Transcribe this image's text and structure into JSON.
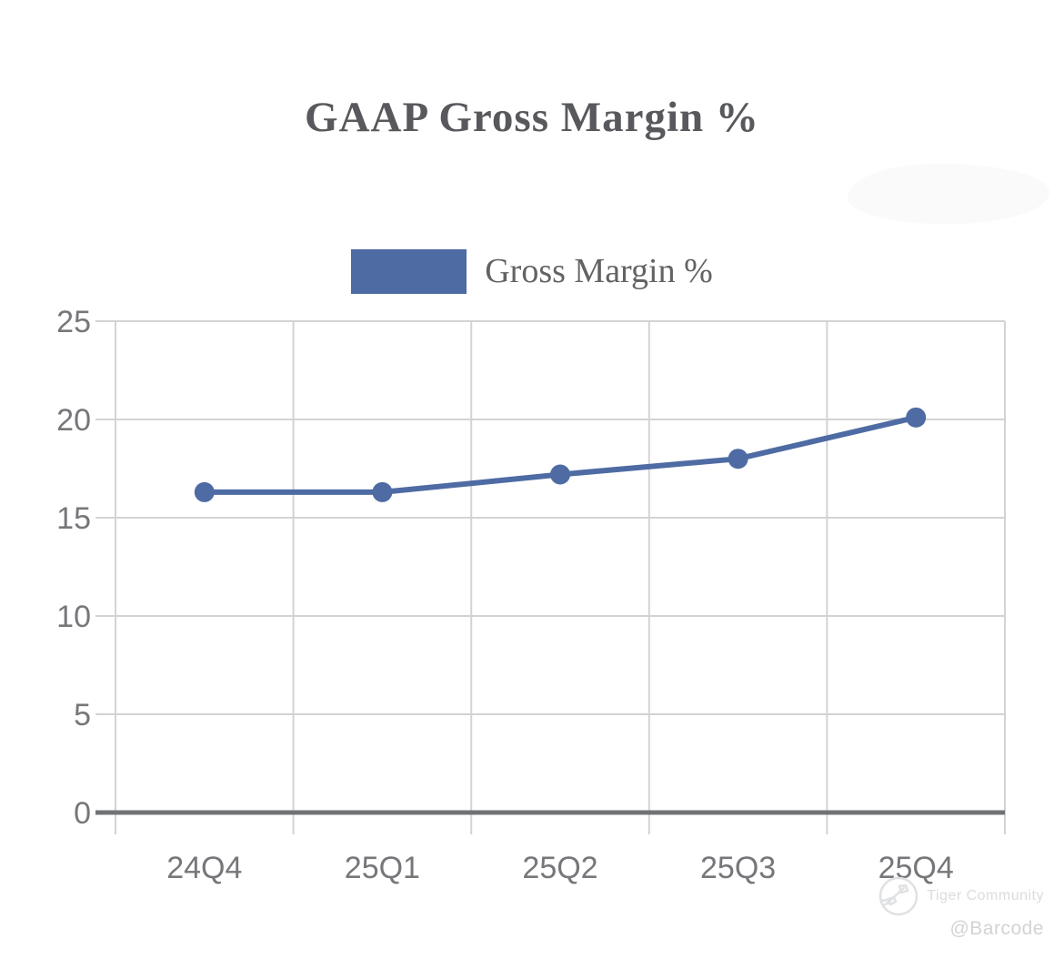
{
  "chart_data": {
    "type": "line",
    "title": "GAAP Gross Margin %",
    "categories": [
      "24Q4",
      "25Q1",
      "25Q2",
      "25Q3",
      "25Q4"
    ],
    "series": [
      {
        "name": "Gross Margin %",
        "values": [
          16.3,
          16.3,
          17.2,
          18,
          20.1
        ],
        "color": "#4e6ba3"
      }
    ],
    "xlabel": "",
    "ylabel": "",
    "ylim": [
      0,
      25
    ],
    "yticks": [
      0,
      5,
      10,
      15,
      20,
      25
    ],
    "grid": true,
    "legend_position": "top-center"
  },
  "legend": {
    "label": "Gross Margin %",
    "swatch_color": "#4e6ba3"
  },
  "watermark": {
    "brand": "Tiger Community",
    "handle": "@Barcode",
    "logo": "tiger-logo"
  },
  "colors": {
    "title_text": "#58595c",
    "legend_text": "#626365",
    "axis_text": "#76777a",
    "grid_line": "#d2d3d5",
    "zero_line": "#717274",
    "accent": "#4e6ba3",
    "watermark_text": "#dbdcde"
  }
}
